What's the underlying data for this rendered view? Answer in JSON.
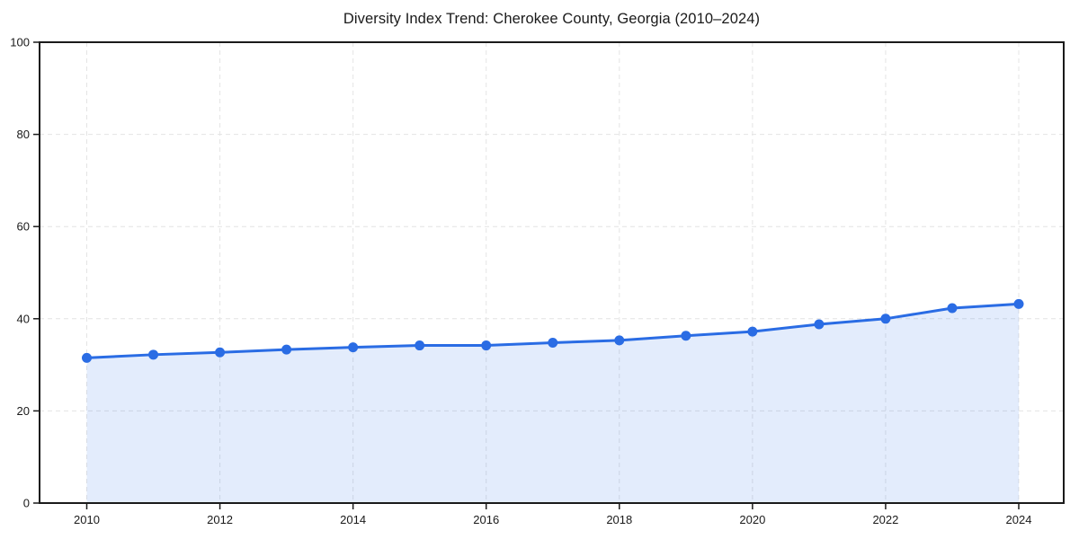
{
  "chart_data": {
    "type": "line",
    "title": "Diversity Index Trend: Cherokee County, Georgia (2010–2024)",
    "x": [
      2010,
      2011,
      2012,
      2013,
      2014,
      2015,
      2016,
      2017,
      2018,
      2019,
      2020,
      2021,
      2022,
      2023,
      2024
    ],
    "series": [
      {
        "name": "Diversity Index",
        "values": [
          31.5,
          32.2,
          32.7,
          33.3,
          33.8,
          34.2,
          34.2,
          34.8,
          35.3,
          36.3,
          37.2,
          38.8,
          40.0,
          42.3,
          43.2
        ]
      }
    ],
    "xlabel": "",
    "ylabel": "",
    "ylim": [
      0,
      100
    ],
    "yticks": [
      0,
      20,
      40,
      60,
      80,
      100
    ],
    "xticks": [
      2010,
      2012,
      2014,
      2016,
      2018,
      2020,
      2022,
      2024
    ],
    "grid": "dashed",
    "legend_position": "none",
    "area_fill": true,
    "markers": true,
    "colors": {
      "line": "#2a6ce4",
      "marker": "#2a6ce4",
      "fill_opacity": 0.13,
      "grid": "#e4e4e4",
      "axis": "#1a1a1a",
      "text": "#1a1a1a",
      "background": "#ffffff"
    }
  }
}
